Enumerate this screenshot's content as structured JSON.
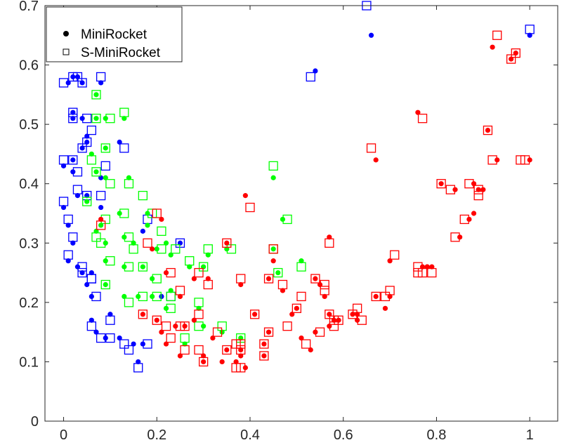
{
  "chart_data": {
    "type": "scatter",
    "title": "",
    "xlabel": "",
    "ylabel": "",
    "xlim": [
      -0.04,
      1.06
    ],
    "ylim": [
      0,
      0.7
    ],
    "xticks": [
      0,
      0.2,
      0.4,
      0.6,
      0.8,
      1
    ],
    "xtick_labels": [
      "0",
      "0.2",
      "0.4",
      "0.6",
      "0.8",
      "1"
    ],
    "yticks": [
      0,
      0.1,
      0.2,
      0.3,
      0.4,
      0.5,
      0.6,
      0.7
    ],
    "ytick_labels": [
      "0",
      "0.1",
      "0.2",
      "0.3",
      "0.4",
      "0.5",
      "0.6",
      "0.7"
    ],
    "grid": false,
    "legend": {
      "placement": "top-left",
      "entries": [
        {
          "label": "MiniRocket",
          "marker": "filled-circle"
        },
        {
          "label": "S-MiniRocket",
          "marker": "open-square"
        }
      ]
    },
    "groups": [
      {
        "color": "#0000ff",
        "points": [
          [
            0.01,
            0.57,
            0.0,
            0.57
          ],
          [
            0.02,
            0.58,
            0.02,
            0.58
          ],
          [
            0.03,
            0.58,
            0.03,
            0.58
          ],
          [
            0.04,
            0.57,
            0.04,
            0.57
          ],
          [
            0.08,
            0.57,
            0.08,
            0.58
          ],
          [
            0.02,
            0.52,
            0.02,
            0.52
          ],
          [
            0.02,
            0.51,
            0.02,
            0.51
          ],
          [
            0.04,
            0.51,
            0.05,
            0.51
          ],
          [
            0.05,
            0.48,
            0.06,
            0.49
          ],
          [
            0.05,
            0.47,
            0.05,
            0.47
          ],
          [
            0.0,
            0.43,
            0.0,
            0.44
          ],
          [
            0.02,
            0.44,
            0.02,
            0.44
          ],
          [
            0.04,
            0.46,
            0.04,
            0.46
          ],
          [
            0.02,
            0.42,
            0.03,
            0.42
          ],
          [
            0.08,
            0.41,
            0.09,
            0.43
          ],
          [
            0.12,
            0.47,
            0.13,
            0.46
          ],
          [
            0.03,
            0.38,
            0.03,
            0.39
          ],
          [
            0.05,
            0.38,
            0.05,
            0.38
          ],
          [
            0.08,
            0.36,
            0.08,
            0.38
          ],
          [
            0.0,
            0.36,
            0.0,
            0.37
          ],
          [
            0.01,
            0.33,
            0.01,
            0.34
          ],
          [
            0.02,
            0.3,
            0.02,
            0.31
          ],
          [
            0.01,
            0.27,
            0.01,
            0.28
          ],
          [
            0.03,
            0.26,
            0.04,
            0.26
          ],
          [
            0.04,
            0.25,
            0.04,
            0.25
          ],
          [
            0.06,
            0.25,
            0.06,
            0.24
          ],
          [
            0.05,
            0.23,
            0.06,
            0.24
          ],
          [
            0.06,
            0.21,
            0.07,
            0.21
          ],
          [
            0.06,
            0.17,
            0.06,
            0.16
          ],
          [
            0.07,
            0.15,
            0.08,
            0.14
          ],
          [
            0.1,
            0.18,
            0.1,
            0.17
          ],
          [
            0.09,
            0.14,
            0.1,
            0.14
          ],
          [
            0.12,
            0.14,
            0.13,
            0.13
          ],
          [
            0.15,
            0.13,
            0.14,
            0.12
          ],
          [
            0.17,
            0.13,
            0.18,
            0.13
          ],
          [
            0.16,
            0.1,
            0.16,
            0.09
          ],
          [
            0.17,
            0.32,
            0.18,
            0.34
          ],
          [
            0.21,
            0.21,
            0.23,
            0.21
          ],
          [
            0.25,
            0.3,
            0.25,
            0.3
          ],
          [
            0.54,
            0.59,
            0.53,
            0.58
          ],
          [
            0.66,
            0.65,
            0.65,
            0.7
          ],
          [
            1.0,
            0.65,
            1.0,
            0.66
          ]
        ]
      },
      {
        "color": "#00ff00",
        "points": [
          [
            0.07,
            0.55,
            0.07,
            0.55
          ],
          [
            0.07,
            0.51,
            0.07,
            0.51
          ],
          [
            0.09,
            0.51,
            0.1,
            0.51
          ],
          [
            0.13,
            0.51,
            0.13,
            0.52
          ],
          [
            0.09,
            0.46,
            0.09,
            0.46
          ],
          [
            0.06,
            0.45,
            0.06,
            0.44
          ],
          [
            0.07,
            0.42,
            0.07,
            0.42
          ],
          [
            0.09,
            0.41,
            0.1,
            0.4
          ],
          [
            0.14,
            0.41,
            0.14,
            0.4
          ],
          [
            0.05,
            0.37,
            0.05,
            0.37
          ],
          [
            0.12,
            0.35,
            0.13,
            0.35
          ],
          [
            0.18,
            0.35,
            0.19,
            0.35
          ],
          [
            0.08,
            0.33,
            0.09,
            0.34
          ],
          [
            0.07,
            0.32,
            0.07,
            0.31
          ],
          [
            0.09,
            0.3,
            0.08,
            0.3
          ],
          [
            0.13,
            0.31,
            0.14,
            0.31
          ],
          [
            0.15,
            0.3,
            0.15,
            0.29
          ],
          [
            0.18,
            0.33,
            0.17,
            0.38
          ],
          [
            0.2,
            0.29,
            0.21,
            0.29
          ],
          [
            0.22,
            0.3,
            0.21,
            0.32
          ],
          [
            0.13,
            0.26,
            0.14,
            0.26
          ],
          [
            0.17,
            0.26,
            0.17,
            0.26
          ],
          [
            0.19,
            0.24,
            0.2,
            0.24
          ],
          [
            0.23,
            0.28,
            0.24,
            0.29
          ],
          [
            0.09,
            0.27,
            0.1,
            0.27
          ],
          [
            0.09,
            0.23,
            0.09,
            0.23
          ],
          [
            0.13,
            0.21,
            0.14,
            0.2
          ],
          [
            0.16,
            0.21,
            0.17,
            0.21
          ],
          [
            0.19,
            0.21,
            0.2,
            0.21
          ],
          [
            0.22,
            0.19,
            0.23,
            0.19
          ],
          [
            0.27,
            0.26,
            0.27,
            0.27
          ],
          [
            0.3,
            0.26,
            0.3,
            0.26
          ],
          [
            0.31,
            0.28,
            0.31,
            0.29
          ],
          [
            0.35,
            0.29,
            0.36,
            0.29
          ],
          [
            0.29,
            0.19,
            0.29,
            0.2
          ],
          [
            0.3,
            0.16,
            0.29,
            0.16
          ],
          [
            0.34,
            0.15,
            0.34,
            0.16
          ],
          [
            0.38,
            0.14,
            0.38,
            0.14
          ],
          [
            0.26,
            0.13,
            0.26,
            0.14
          ],
          [
            0.45,
            0.29,
            0.45,
            0.29
          ],
          [
            0.47,
            0.34,
            0.48,
            0.34
          ],
          [
            0.46,
            0.25,
            0.46,
            0.25
          ],
          [
            0.51,
            0.27,
            0.51,
            0.26
          ],
          [
            0.45,
            0.41,
            0.45,
            0.43
          ],
          [
            0.23,
            0.22,
            0.23,
            0.21
          ]
        ]
      },
      {
        "color": "#ff0000",
        "points": [
          [
            0.21,
            0.34,
            0.2,
            0.35
          ],
          [
            0.08,
            0.34,
            0.08,
            0.33
          ],
          [
            0.19,
            0.29,
            0.18,
            0.3
          ],
          [
            0.22,
            0.25,
            0.23,
            0.25
          ],
          [
            0.25,
            0.21,
            0.25,
            0.22
          ],
          [
            0.17,
            0.18,
            0.17,
            0.18
          ],
          [
            0.2,
            0.17,
            0.2,
            0.17
          ],
          [
            0.21,
            0.15,
            0.22,
            0.16
          ],
          [
            0.24,
            0.16,
            0.25,
            0.16
          ],
          [
            0.26,
            0.16,
            0.26,
            0.16
          ],
          [
            0.22,
            0.13,
            0.23,
            0.14
          ],
          [
            0.25,
            0.11,
            0.26,
            0.12
          ],
          [
            0.28,
            0.24,
            0.29,
            0.25
          ],
          [
            0.31,
            0.24,
            0.31,
            0.23
          ],
          [
            0.28,
            0.17,
            0.29,
            0.18
          ],
          [
            0.32,
            0.14,
            0.33,
            0.15
          ],
          [
            0.3,
            0.11,
            0.29,
            0.12
          ],
          [
            0.3,
            0.1,
            0.3,
            0.1
          ],
          [
            0.35,
            0.3,
            0.35,
            0.3
          ],
          [
            0.38,
            0.23,
            0.38,
            0.24
          ],
          [
            0.35,
            0.12,
            0.35,
            0.12
          ],
          [
            0.34,
            0.1,
            0.37,
            0.13
          ],
          [
            0.38,
            0.12,
            0.38,
            0.13
          ],
          [
            0.38,
            0.11,
            0.38,
            0.12
          ],
          [
            0.37,
            0.1,
            0.37,
            0.09
          ],
          [
            0.39,
            0.09,
            0.38,
            0.09
          ],
          [
            0.39,
            0.38,
            0.4,
            0.36
          ],
          [
            0.41,
            0.18,
            0.41,
            0.18
          ],
          [
            0.43,
            0.11,
            0.43,
            0.11
          ],
          [
            0.43,
            0.13,
            0.43,
            0.13
          ],
          [
            0.44,
            0.15,
            0.44,
            0.15
          ],
          [
            0.44,
            0.24,
            0.44,
            0.24
          ],
          [
            0.45,
            0.27,
            0.45,
            0.29
          ],
          [
            0.47,
            0.22,
            0.47,
            0.23
          ],
          [
            0.49,
            0.18,
            0.48,
            0.16
          ],
          [
            0.5,
            0.19,
            0.5,
            0.19
          ],
          [
            0.51,
            0.14,
            0.51,
            0.21
          ],
          [
            0.53,
            0.12,
            0.52,
            0.13
          ],
          [
            0.54,
            0.15,
            0.55,
            0.15
          ],
          [
            0.54,
            0.24,
            0.54,
            0.24
          ],
          [
            0.55,
            0.23,
            0.56,
            0.23
          ],
          [
            0.56,
            0.21,
            0.56,
            0.22
          ],
          [
            0.57,
            0.18,
            0.57,
            0.18
          ],
          [
            0.58,
            0.17,
            0.58,
            0.17
          ],
          [
            0.57,
            0.16,
            0.58,
            0.16
          ],
          [
            0.59,
            0.17,
            0.59,
            0.17
          ],
          [
            0.57,
            0.31,
            0.57,
            0.3
          ],
          [
            0.62,
            0.18,
            0.62,
            0.18
          ],
          [
            0.63,
            0.18,
            0.63,
            0.19
          ],
          [
            0.63,
            0.17,
            0.64,
            0.17
          ],
          [
            0.67,
            0.44,
            0.66,
            0.46
          ],
          [
            0.67,
            0.21,
            0.67,
            0.21
          ],
          [
            0.69,
            0.19,
            0.69,
            0.21
          ],
          [
            0.7,
            0.21,
            0.7,
            0.22
          ],
          [
            0.7,
            0.27,
            0.71,
            0.28
          ],
          [
            0.76,
            0.52,
            0.77,
            0.51
          ],
          [
            0.77,
            0.26,
            0.76,
            0.26
          ],
          [
            0.78,
            0.26,
            0.77,
            0.25
          ],
          [
            0.78,
            0.26,
            0.76,
            0.25
          ],
          [
            0.79,
            0.26,
            0.79,
            0.25
          ],
          [
            0.81,
            0.4,
            0.81,
            0.4
          ],
          [
            0.84,
            0.39,
            0.83,
            0.39
          ],
          [
            0.85,
            0.31,
            0.84,
            0.31
          ],
          [
            0.87,
            0.34,
            0.86,
            0.34
          ],
          [
            0.88,
            0.4,
            0.87,
            0.4
          ],
          [
            0.88,
            0.35,
            0.89,
            0.39
          ],
          [
            0.89,
            0.39,
            0.89,
            0.38
          ],
          [
            0.9,
            0.39,
            0.91,
            0.49
          ],
          [
            0.91,
            0.49,
            0.92,
            0.44
          ],
          [
            0.92,
            0.63,
            0.93,
            0.65
          ],
          [
            0.93,
            0.44,
            0.98,
            0.44
          ],
          [
            0.96,
            0.61,
            0.96,
            0.61
          ],
          [
            0.97,
            0.62,
            0.97,
            0.62
          ],
          [
            1.0,
            0.44,
            0.99,
            0.44
          ]
        ]
      }
    ]
  }
}
